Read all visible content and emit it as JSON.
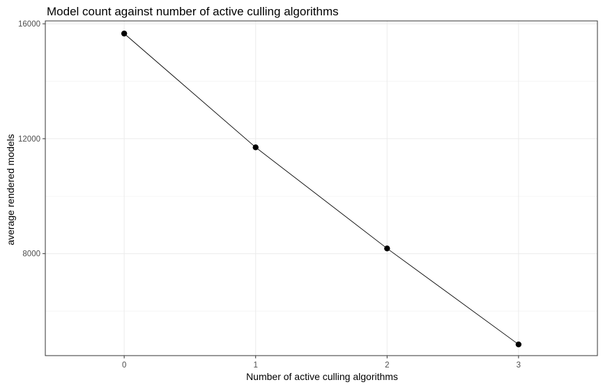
{
  "chart_data": {
    "type": "line",
    "title": "Model count against number of active culling algorithms",
    "xlabel": "Number of active culling algorithms",
    "ylabel": "average rendered models",
    "x": [
      0,
      1,
      2,
      3
    ],
    "y": [
      15660,
      11700,
      8180,
      4840
    ],
    "x_ticks": [
      "0",
      "1",
      "2",
      "3"
    ],
    "y_ticks": [
      "8000",
      "12000",
      "16000"
    ],
    "xlim": [
      -0.6,
      3.6
    ],
    "ylim": [
      4450,
      16100
    ],
    "y_minor_grid": [
      6000,
      10000,
      14000
    ],
    "grid": true,
    "legend": "none",
    "colors": {
      "line": "#000000",
      "points": "#000000",
      "grid": "#ebebeb",
      "border": "#333333"
    }
  }
}
